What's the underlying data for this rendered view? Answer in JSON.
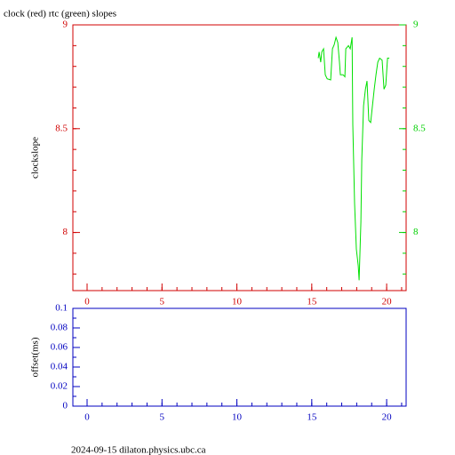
{
  "footer": "2024-09-15  dilaton.physics.ubc.ca",
  "chart_data": [
    {
      "type": "line",
      "title": "clock (red) rtc (green) slopes",
      "ylabel": "clockslope",
      "axis_color": "#d00000",
      "y2_color": "#00d000",
      "xlim": [
        -0.95,
        21.3
      ],
      "xticks": [
        0,
        5,
        10,
        15,
        20
      ],
      "ylim": [
        7.72,
        9
      ],
      "yticks": [
        8,
        8.5,
        9
      ],
      "y2lim": [
        7.72,
        9
      ],
      "y2ticks": [
        8,
        8.5,
        9
      ],
      "series": [
        {
          "name": "rtc",
          "color": "#00e000",
          "axis": "y2",
          "x": [
            15.43,
            15.49,
            15.6,
            15.67,
            15.79,
            15.9,
            16.03,
            16.26,
            16.38,
            16.5,
            16.62,
            16.74,
            16.85,
            16.91,
            17.09,
            17.21,
            17.27,
            17.45,
            17.57,
            17.69,
            17.74,
            17.86,
            17.98,
            18.1,
            18.16,
            18.28,
            18.34,
            18.46,
            18.58,
            18.69,
            18.81,
            18.93,
            19.05,
            19.17,
            19.29,
            19.41,
            19.53,
            19.7,
            19.82,
            19.94,
            20.06,
            20.18
          ],
          "values": [
            8.84,
            8.87,
            8.82,
            8.87,
            8.885,
            8.76,
            8.74,
            8.735,
            8.885,
            8.905,
            8.94,
            8.915,
            8.82,
            8.76,
            8.76,
            8.75,
            8.885,
            8.9,
            8.885,
            8.94,
            8.52,
            8.14,
            7.92,
            7.84,
            7.77,
            8.05,
            8.35,
            8.61,
            8.69,
            8.73,
            8.54,
            8.53,
            8.61,
            8.69,
            8.76,
            8.82,
            8.84,
            8.83,
            8.69,
            8.71,
            8.84,
            8.84
          ]
        }
      ]
    },
    {
      "type": "line",
      "ylabel": "offset(ms)",
      "axis_color": "#0000c0",
      "xlim": [
        -0.95,
        21.3
      ],
      "xticks": [
        0,
        5,
        10,
        15,
        20
      ],
      "ylim": [
        0,
        0.1
      ],
      "yticks": [
        0,
        0.02,
        0.04,
        0.06,
        0.08,
        0.1
      ],
      "series": []
    }
  ]
}
